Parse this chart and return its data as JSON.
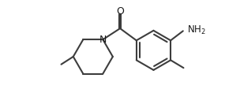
{
  "background_color": "#ffffff",
  "line_color": "#3d3d3d",
  "text_color": "#1a1a1a",
  "line_width": 1.5,
  "fig_width": 3.04,
  "fig_height": 1.32,
  "dpi": 100,
  "xlim": [
    0.0,
    10.5
  ],
  "ylim": [
    -2.8,
    3.2
  ]
}
